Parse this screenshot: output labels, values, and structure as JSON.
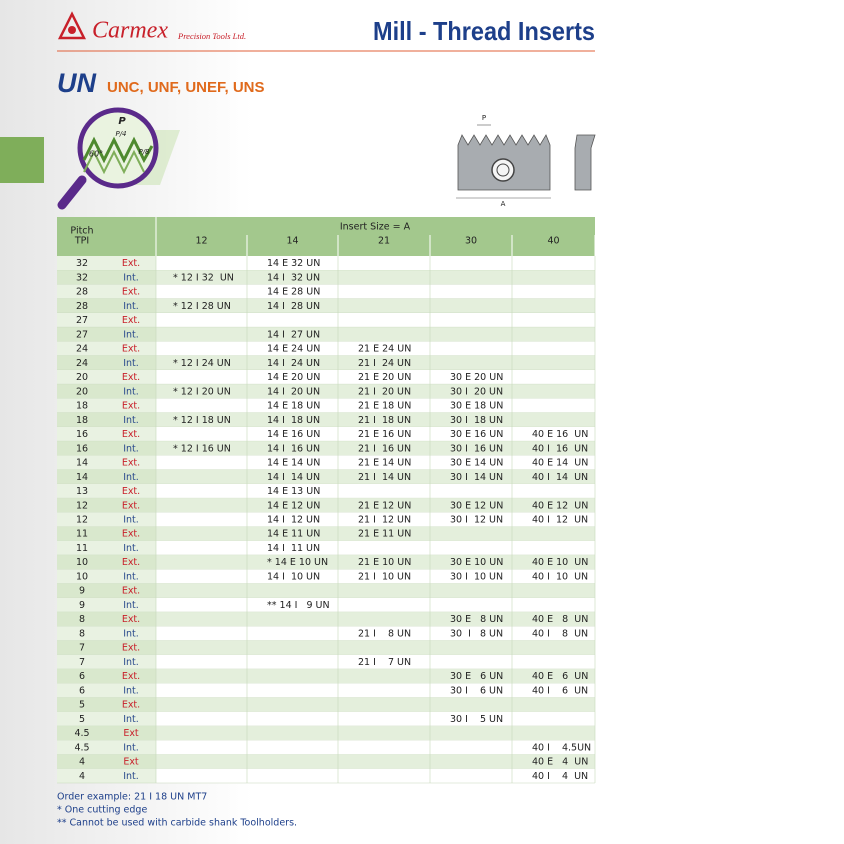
{
  "header": {
    "brand": "Carmex",
    "brand_sub": "Precision Tools Ltd.",
    "title": "Mill - Thread Inserts"
  },
  "section": {
    "title": "UN",
    "subtitle": "UNC, UNF, UNEF, UNS"
  },
  "thread_figure": {
    "labels": [
      "P",
      "P/4",
      "60°",
      "P/8"
    ]
  },
  "insert_figure": {
    "labels": [
      "P",
      "A"
    ]
  },
  "table": {
    "pitch_header": [
      "Pitch",
      "TPI"
    ],
    "size_header": "Insert Size = A",
    "sizes": [
      "12",
      "14",
      "21",
      "30",
      "40"
    ],
    "rows": [
      {
        "pitch": "32",
        "type": "Ext.",
        "cells": [
          null,
          "14 E 32 UN",
          null,
          null,
          null
        ]
      },
      {
        "pitch": "32",
        "type": "Int.",
        "cells": [
          "* 12 I 32  UN",
          "14 I  32 UN",
          null,
          null,
          null
        ]
      },
      {
        "pitch": "28",
        "type": "Ext.",
        "cells": [
          null,
          "14 E 28 UN",
          null,
          null,
          null
        ]
      },
      {
        "pitch": "28",
        "type": "Int.",
        "cells": [
          "* 12 I 28 UN",
          "14 I  28 UN",
          null,
          null,
          null
        ]
      },
      {
        "pitch": "27",
        "type": "Ext.",
        "cells": [
          null,
          null,
          null,
          null,
          null
        ]
      },
      {
        "pitch": "27",
        "type": "Int.",
        "cells": [
          null,
          "14 I  27 UN",
          null,
          null,
          null
        ]
      },
      {
        "pitch": "24",
        "type": "Ext.",
        "cells": [
          null,
          "14 E 24 UN",
          "21 E 24 UN",
          null,
          null
        ]
      },
      {
        "pitch": "24",
        "type": "Int.",
        "cells": [
          "* 12 I 24 UN",
          "14 I  24 UN",
          "21 I  24 UN",
          null,
          null
        ]
      },
      {
        "pitch": "20",
        "type": "Ext.",
        "cells": [
          null,
          "14 E 20 UN",
          "21 E 20 UN",
          "30 E 20 UN",
          null
        ]
      },
      {
        "pitch": "20",
        "type": "Int.",
        "cells": [
          "* 12 I 20 UN",
          "14 I  20 UN",
          "21 I  20 UN",
          "30 I  20 UN",
          null
        ]
      },
      {
        "pitch": "18",
        "type": "Ext.",
        "cells": [
          null,
          "14 E 18 UN",
          "21 E 18 UN",
          "30 E 18 UN",
          null
        ]
      },
      {
        "pitch": "18",
        "type": "Int.",
        "cells": [
          "* 12 I 18 UN",
          "14 I  18 UN",
          "21 I  18 UN",
          "30 I  18 UN",
          null
        ]
      },
      {
        "pitch": "16",
        "type": "Ext.",
        "cells": [
          null,
          "14 E 16 UN",
          "21 E 16 UN",
          "30 E 16 UN",
          "40 E 16  UN"
        ]
      },
      {
        "pitch": "16",
        "type": "Int.",
        "cells": [
          "* 12 I 16 UN",
          "14 I  16 UN",
          "21 I  16 UN",
          "30 I  16 UN",
          "40 I  16  UN"
        ]
      },
      {
        "pitch": "14",
        "type": "Ext.",
        "cells": [
          null,
          "14 E 14 UN",
          "21 E 14 UN",
          "30 E 14 UN",
          "40 E 14  UN"
        ]
      },
      {
        "pitch": "14",
        "type": "Int.",
        "cells": [
          null,
          "14 I  14 UN",
          "21 I  14 UN",
          "30 I  14 UN",
          "40 I  14  UN"
        ]
      },
      {
        "pitch": "13",
        "type": "Ext.",
        "cells": [
          null,
          "14 E 13 UN",
          null,
          null,
          null
        ]
      },
      {
        "pitch": "12",
        "type": "Ext.",
        "cells": [
          null,
          "14 E 12 UN",
          "21 E 12 UN",
          "30 E 12 UN",
          "40 E 12  UN"
        ]
      },
      {
        "pitch": "12",
        "type": "Int.",
        "cells": [
          null,
          "14 I  12 UN",
          "21 I  12 UN",
          "30 I  12 UN",
          "40 I  12  UN"
        ]
      },
      {
        "pitch": "11",
        "type": "Ext.",
        "cells": [
          null,
          "14 E 11 UN",
          "21 E 11 UN",
          null,
          null
        ]
      },
      {
        "pitch": "11",
        "type": "Int.",
        "cells": [
          null,
          "14 I  11 UN",
          null,
          null,
          null
        ]
      },
      {
        "pitch": "10",
        "type": "Ext.",
        "cells": [
          null,
          "* 14 E 10 UN",
          "21 E 10 UN",
          "30 E 10 UN",
          "40 E 10  UN"
        ]
      },
      {
        "pitch": "10",
        "type": "Int.",
        "cells": [
          null,
          "14 I  10 UN",
          "21 I  10 UN",
          "30 I  10 UN",
          "40 I  10  UN"
        ]
      },
      {
        "pitch": "9",
        "type": "Ext.",
        "cells": [
          null,
          null,
          null,
          null,
          null
        ]
      },
      {
        "pitch": "9",
        "type": "Int.",
        "cells": [
          null,
          "** 14 I   9 UN",
          null,
          null,
          null
        ]
      },
      {
        "pitch": "8",
        "type": "Ext.",
        "cells": [
          null,
          null,
          null,
          "30 E   8 UN",
          "40 E   8  UN"
        ]
      },
      {
        "pitch": "8",
        "type": "Int.",
        "cells": [
          null,
          null,
          "21 I    8 UN",
          "30  I   8 UN",
          "40 I    8  UN"
        ]
      },
      {
        "pitch": "7",
        "type": "Ext.",
        "cells": [
          null,
          null,
          null,
          null,
          null
        ]
      },
      {
        "pitch": "7",
        "type": "Int.",
        "cells": [
          null,
          null,
          "21 I    7 UN",
          null,
          null
        ]
      },
      {
        "pitch": "6",
        "type": "Ext.",
        "cells": [
          null,
          null,
          null,
          "30 E   6 UN",
          "40 E   6  UN"
        ]
      },
      {
        "pitch": "6",
        "type": "Int.",
        "cells": [
          null,
          null,
          null,
          "30 I    6 UN",
          "40 I    6  UN"
        ]
      },
      {
        "pitch": "5",
        "type": "Ext.",
        "cells": [
          null,
          null,
          null,
          null,
          null
        ]
      },
      {
        "pitch": "5",
        "type": "Int.",
        "cells": [
          null,
          null,
          null,
          "30 I    5 UN",
          null
        ]
      },
      {
        "pitch": "4.5",
        "type": "Ext",
        "cells": [
          null,
          null,
          null,
          null,
          null
        ]
      },
      {
        "pitch": "4.5",
        "type": "Int.",
        "cells": [
          null,
          null,
          null,
          null,
          "40 I    4.5UN"
        ]
      },
      {
        "pitch": "4",
        "type": "Ext",
        "cells": [
          null,
          null,
          null,
          null,
          "40 E   4  UN"
        ]
      },
      {
        "pitch": "4",
        "type": "Int.",
        "cells": [
          null,
          null,
          null,
          null,
          "40 I    4  UN"
        ]
      }
    ]
  },
  "footer": {
    "order_example": "Order example: 21 I 18 UN MT7",
    "notes": [
      "* One cutting edge",
      "** Cannot be used with carbide shank Toolholders."
    ]
  }
}
